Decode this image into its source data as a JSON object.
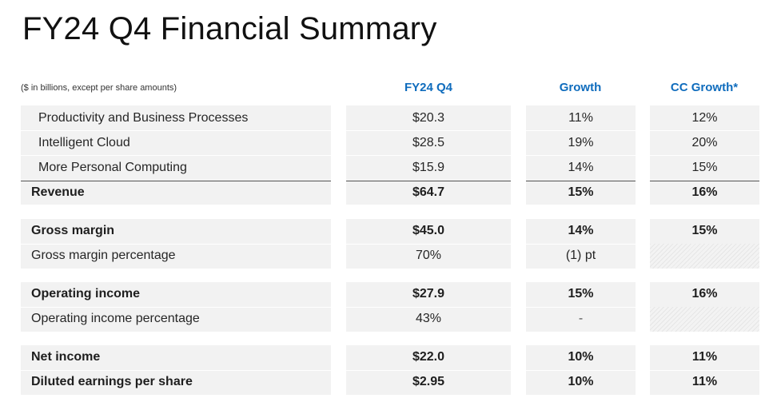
{
  "title": "FY24 Q4 Financial Summary",
  "units_note": "($ in billions, except per share amounts)",
  "columns": [
    "FY24 Q4",
    "Growth",
    "CC Growth*"
  ],
  "rows": [
    {
      "label": "Productivity and Business Processes",
      "fy24q4": "$20.3",
      "growth": "11%",
      "cc_growth": "12%"
    },
    {
      "label": "Intelligent Cloud",
      "fy24q4": "$28.5",
      "growth": "19%",
      "cc_growth": "20%"
    },
    {
      "label": "More Personal Computing",
      "fy24q4": "$15.9",
      "growth": "14%",
      "cc_growth": "15%"
    },
    {
      "label": "Revenue",
      "fy24q4": "$64.7",
      "growth": "15%",
      "cc_growth": "16%"
    },
    {
      "label": "Gross margin",
      "fy24q4": "$45.0",
      "growth": "14%",
      "cc_growth": "15%"
    },
    {
      "label": "Gross margin percentage",
      "fy24q4": "70%",
      "growth": "(1) pt",
      "cc_growth": ""
    },
    {
      "label": "Operating income",
      "fy24q4": "$27.9",
      "growth": "15%",
      "cc_growth": "16%"
    },
    {
      "label": "Operating income percentage",
      "fy24q4": "43%",
      "growth": "-",
      "cc_growth": ""
    },
    {
      "label": "Net income",
      "fy24q4": "$22.0",
      "growth": "10%",
      "cc_growth": "11%"
    },
    {
      "label": "Diluted earnings per share",
      "fy24q4": "$2.95",
      "growth": "10%",
      "cc_growth": "11%"
    }
  ]
}
